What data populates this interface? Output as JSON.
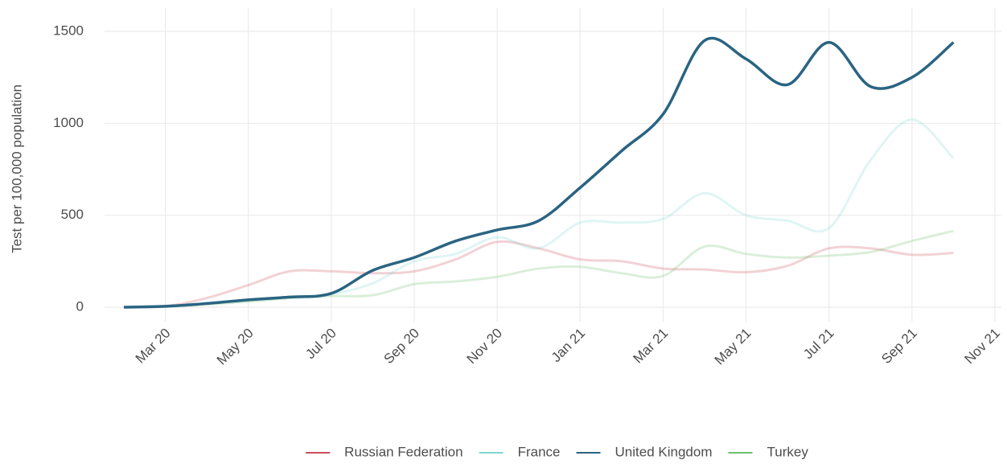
{
  "chart_data": {
    "type": "line",
    "y_label": "Test per 100,000 population",
    "x": [
      "2020-02",
      "2020-03",
      "2020-04",
      "2020-05",
      "2020-06",
      "2020-07",
      "2020-08",
      "2020-09",
      "2020-10",
      "2020-11",
      "2020-12",
      "2021-01",
      "2021-02",
      "2021-03",
      "2021-04",
      "2021-05",
      "2021-06",
      "2021-07",
      "2021-08",
      "2021-09",
      "2021-10"
    ],
    "series": [
      {
        "name": "Russian Federation",
        "color": "#cc4c5a",
        "values": [
          0,
          5,
          50,
          120,
          195,
          195,
          185,
          195,
          260,
          355,
          320,
          260,
          250,
          210,
          205,
          190,
          225,
          320,
          320,
          285,
          295
        ]
      },
      {
        "name": "France",
        "color": "#7fd8d2",
        "values": [
          0,
          5,
          20,
          35,
          50,
          70,
          130,
          250,
          290,
          380,
          320,
          460,
          460,
          480,
          620,
          500,
          470,
          430,
          800,
          1020,
          810
        ]
      },
      {
        "name": "United Kingdom",
        "color": "#2a6482",
        "values": [
          0,
          5,
          20,
          40,
          55,
          75,
          200,
          270,
          360,
          420,
          470,
          650,
          850,
          1050,
          1450,
          1350,
          1210,
          1440,
          1200,
          1250,
          1440
        ]
      },
      {
        "name": "Turkey",
        "color": "#6cc06c",
        "values": [
          0,
          3,
          15,
          30,
          50,
          60,
          65,
          125,
          140,
          165,
          210,
          220,
          185,
          170,
          330,
          290,
          270,
          280,
          300,
          360,
          415
        ]
      }
    ],
    "highlight": "United Kingdom",
    "xlim": [
      "2020-02",
      "2021-11"
    ],
    "xticks": [
      {
        "value": "2020-03",
        "label": "Mar 20"
      },
      {
        "value": "2020-05",
        "label": "May 20"
      },
      {
        "value": "2020-07",
        "label": "Jul 20"
      },
      {
        "value": "2020-09",
        "label": "Sep 20"
      },
      {
        "value": "2020-11",
        "label": "Nov 20"
      },
      {
        "value": "2021-01",
        "label": "Jan 21"
      },
      {
        "value": "2021-03",
        "label": "Mar 21"
      },
      {
        "value": "2021-05",
        "label": "May 21"
      },
      {
        "value": "2021-07",
        "label": "Jul 21"
      },
      {
        "value": "2021-09",
        "label": "Sep 21"
      },
      {
        "value": "2021-11",
        "label": "Nov 21"
      }
    ],
    "ylim": [
      0,
      1500
    ],
    "yticks": [
      0,
      500,
      1000,
      1500
    ],
    "grid": true,
    "legend": "bottom"
  }
}
